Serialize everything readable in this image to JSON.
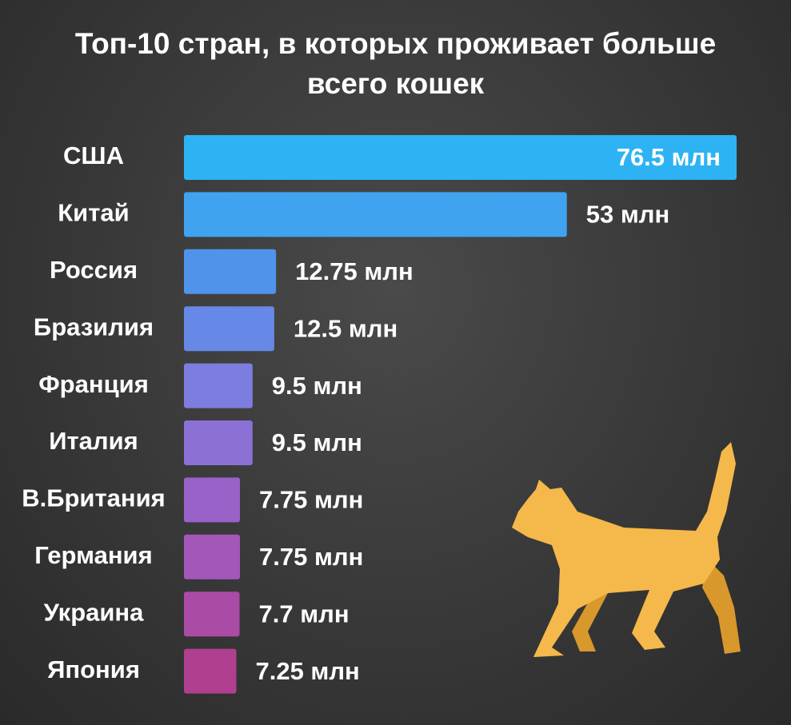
{
  "chart_data": {
    "type": "bar",
    "orientation": "horizontal",
    "title": "Топ-10 стран, в которых проживает больше всего кошек",
    "categories": [
      "США",
      "Китай",
      "Россия",
      "Бразилия",
      "Франция",
      "Италия",
      "В.Британия",
      "Германия",
      "Украина",
      "Япония"
    ],
    "values": [
      76.5,
      53,
      12.75,
      12.5,
      9.5,
      9.5,
      7.75,
      7.75,
      7.7,
      7.25
    ],
    "value_labels": [
      "76.5 млн",
      "53 млн",
      "12.75 млн",
      "12.5 млн",
      "9.5 млн",
      "9.5 млн",
      "7.75 млн",
      "7.75 млн",
      "7.7 млн",
      "7.25 млн"
    ],
    "colors": [
      "#2db3f4",
      "#3fa3f0",
      "#4f94ea",
      "#6688e6",
      "#7d7ddf",
      "#8b70d6",
      "#9962c8",
      "#a357b9",
      "#aa4ba6",
      "#b03f8f"
    ]
  }
}
